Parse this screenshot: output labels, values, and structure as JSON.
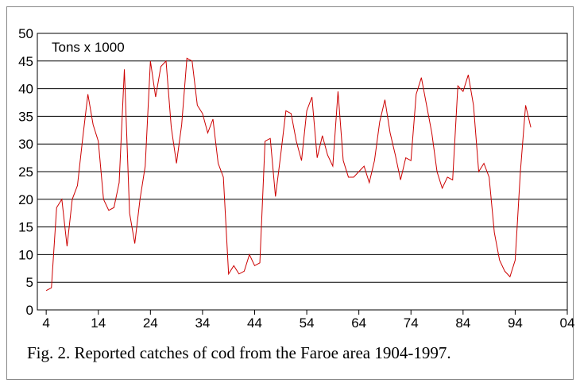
{
  "chart_data": {
    "type": "line",
    "annotation": "Tons x 1000",
    "caption": "Fig. 2. Reported catches of cod from the Faroe area 1904-1997.",
    "x": [
      1904,
      1905,
      1906,
      1907,
      1908,
      1909,
      1910,
      1911,
      1912,
      1913,
      1914,
      1915,
      1916,
      1917,
      1918,
      1919,
      1920,
      1921,
      1922,
      1923,
      1924,
      1925,
      1926,
      1927,
      1928,
      1929,
      1930,
      1931,
      1932,
      1933,
      1934,
      1935,
      1936,
      1937,
      1938,
      1939,
      1940,
      1941,
      1942,
      1943,
      1944,
      1945,
      1946,
      1947,
      1948,
      1949,
      1950,
      1951,
      1952,
      1953,
      1954,
      1955,
      1956,
      1957,
      1958,
      1959,
      1960,
      1961,
      1962,
      1963,
      1964,
      1965,
      1966,
      1967,
      1968,
      1969,
      1970,
      1971,
      1972,
      1973,
      1974,
      1975,
      1976,
      1977,
      1978,
      1979,
      1980,
      1981,
      1982,
      1983,
      1984,
      1985,
      1986,
      1987,
      1988,
      1989,
      1990,
      1991,
      1992,
      1993,
      1994,
      1995,
      1996,
      1997
    ],
    "series": [
      {
        "color": "#cc0000",
        "values": [
          3.5,
          4,
          18.5,
          20,
          11.5,
          20,
          22.5,
          31,
          39,
          33.5,
          30.5,
          20,
          18,
          18.5,
          23,
          43.5,
          17.5,
          12,
          20,
          26,
          45,
          38.5,
          44,
          45,
          33,
          26.5,
          33.5,
          45.5,
          45,
          37,
          35.5,
          32,
          34.5,
          26.5,
          24,
          6.5,
          8,
          6.5,
          7,
          10,
          8,
          8.5,
          30.5,
          31,
          20.5,
          28,
          36,
          35.5,
          30.5,
          27,
          36,
          38.5,
          27.5,
          31.5,
          28,
          26,
          39.5,
          27,
          24,
          24,
          25,
          26,
          23,
          27,
          34,
          38,
          32,
          28,
          23.5,
          27.5,
          27,
          39,
          42,
          37,
          32,
          25,
          22,
          24,
          23.5,
          40.5,
          39.5,
          42.5,
          37,
          25,
          26.5,
          24,
          14,
          9,
          7,
          6,
          9,
          25,
          37,
          33
        ]
      }
    ],
    "xlim": [
      1902.3,
      2004
    ],
    "xticks": [
      {
        "value": 1904,
        "label": "4"
      },
      {
        "value": 1914,
        "label": "14"
      },
      {
        "value": 1924,
        "label": "24"
      },
      {
        "value": 1934,
        "label": "34"
      },
      {
        "value": 1944,
        "label": "44"
      },
      {
        "value": 1954,
        "label": "54"
      },
      {
        "value": 1964,
        "label": "64"
      },
      {
        "value": 1974,
        "label": "74"
      },
      {
        "value": 1984,
        "label": "84"
      },
      {
        "value": 1994,
        "label": "94"
      },
      {
        "value": 2004,
        "label": "04"
      }
    ],
    "ylim": [
      0,
      50
    ],
    "yticks": [
      0,
      5,
      10,
      15,
      20,
      25,
      30,
      35,
      40,
      45,
      50
    ],
    "grid": true
  }
}
